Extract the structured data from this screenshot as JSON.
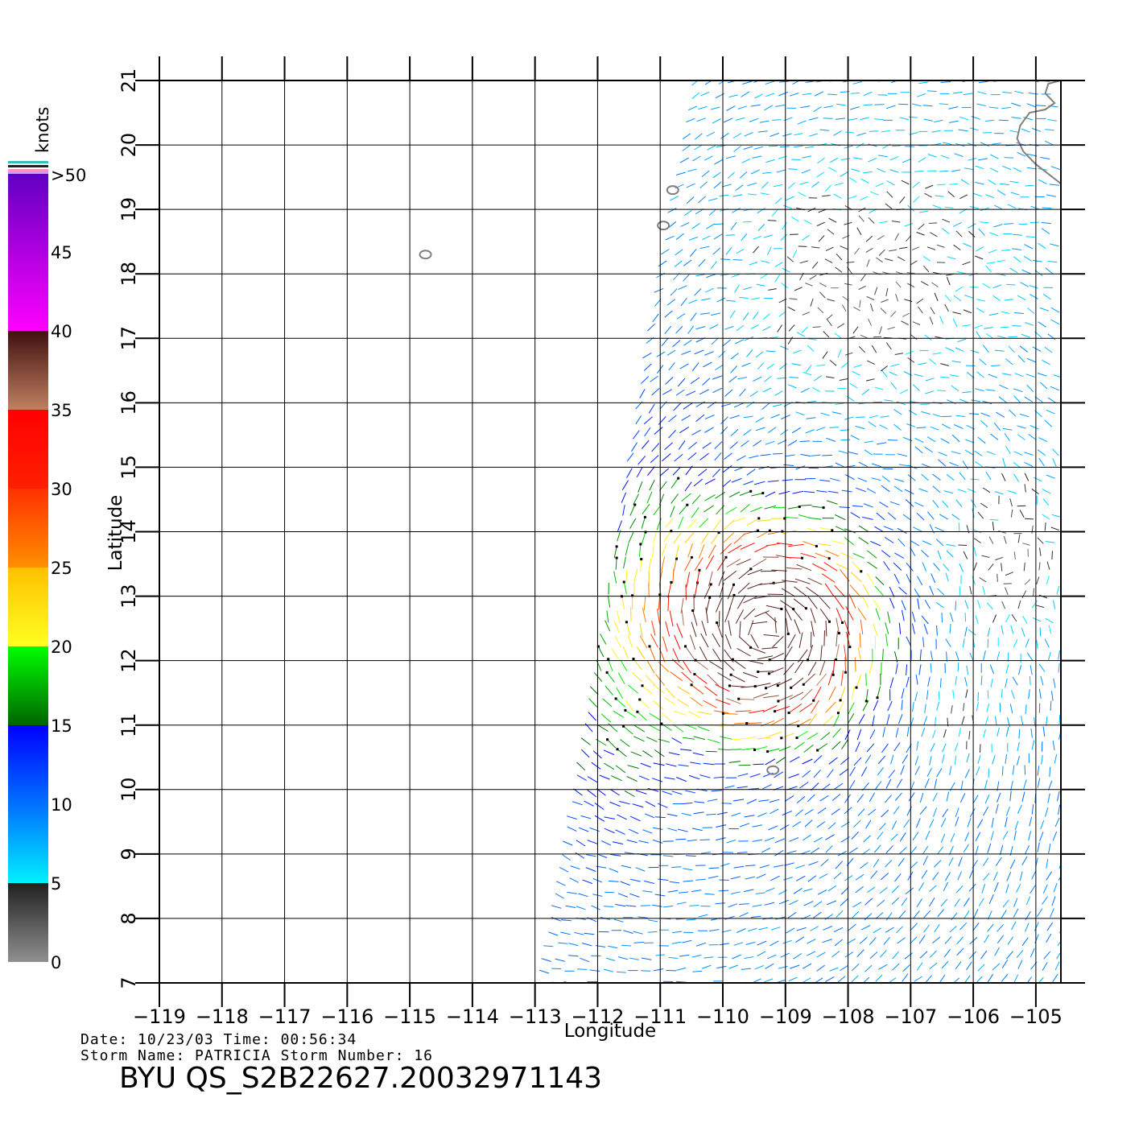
{
  "map": {
    "lon_range": [
      -119,
      -104.6
    ],
    "lat_range": [
      7,
      21
    ],
    "lon_ticks": [
      "−119",
      "−118",
      "−117",
      "−116",
      "−115",
      "−114",
      "−113",
      "−112",
      "−111",
      "−110",
      "−109",
      "−108",
      "−107",
      "−106",
      "−105"
    ],
    "lat_ticks": [
      "7",
      "8",
      "9",
      "10",
      "11",
      "12",
      "13",
      "14",
      "15",
      "16",
      "17",
      "18",
      "19",
      "20",
      "21"
    ],
    "xlabel": "Longitude",
    "ylabel": "Latitude",
    "grid": true,
    "islands": [
      {
        "lon": -114.75,
        "lat": 18.3
      },
      {
        "lon": -110.95,
        "lat": 18.75
      },
      {
        "lon": -110.8,
        "lat": 19.3
      },
      {
        "lon": -109.2,
        "lat": 10.3
      }
    ],
    "swath_edge_lon_at_lat7": -113.0,
    "swath_edge_lon_at_lat21": -110.4,
    "storm_center": {
      "lon": -109.3,
      "lat": 12.5
    },
    "coastline_color": "#808080"
  },
  "colorbar": {
    "unit_label": "knots",
    "labels": [
      ">50",
      "45",
      "40",
      "35",
      "30",
      "25",
      "20",
      "15",
      "10",
      "5",
      "0"
    ],
    "stops": [
      {
        "from": 0,
        "to": 5,
        "colors": [
          "#909090",
          "#202020"
        ]
      },
      {
        "from": 5,
        "to": 10,
        "colors": [
          "#00f0ff",
          "#0070ff"
        ]
      },
      {
        "from": 10,
        "to": 15,
        "colors": [
          "#0070ff",
          "#0000ff"
        ]
      },
      {
        "from": 15,
        "to": 20,
        "colors": [
          "#006400",
          "#00ff00"
        ]
      },
      {
        "from": 20,
        "to": 25,
        "colors": [
          "#ffff20",
          "#ffc000"
        ]
      },
      {
        "from": 25,
        "to": 30,
        "colors": [
          "#ff9000",
          "#ff3000"
        ]
      },
      {
        "from": 30,
        "to": 35,
        "colors": [
          "#ff2000",
          "#ff0000"
        ]
      },
      {
        "from": 35,
        "to": 40,
        "colors": [
          "#c08060",
          "#401010"
        ]
      },
      {
        "from": 40,
        "to": 50,
        "colors": [
          "#ff00ff",
          "#6000c0"
        ]
      }
    ]
  },
  "footer": {
    "line1": "Date:  10/23/03   Time:  00:56:34",
    "line2": "Storm  Name:  PATRICIA   Storm  Number:  16",
    "title": "BYU  QS_S2B22627.20032971143"
  }
}
